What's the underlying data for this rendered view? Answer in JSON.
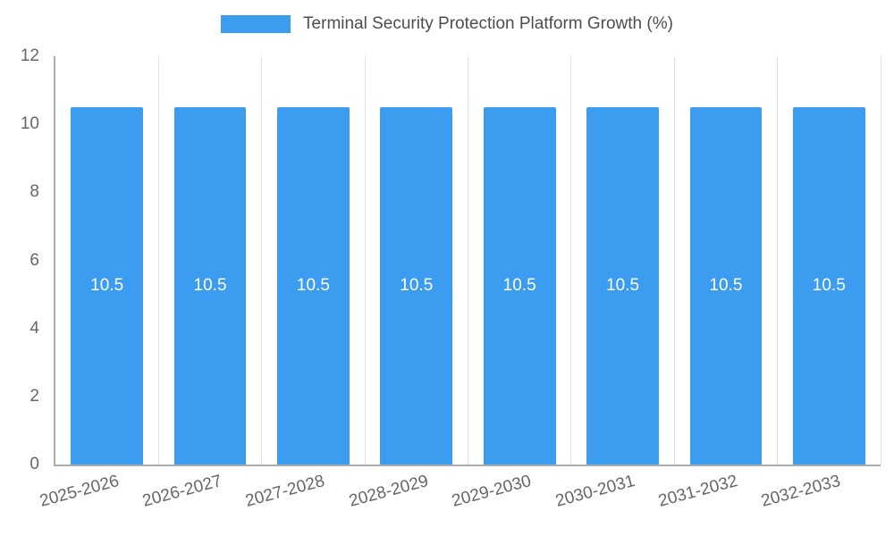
{
  "chart_data": {
    "type": "bar",
    "title": "Terminal Security Protection Platform Growth (%)",
    "categories": [
      "2025-2026",
      "2026-2027",
      "2027-2028",
      "2028-2029",
      "2029-2030",
      "2030-2031",
      "2031-2032",
      "2032-2033"
    ],
    "values": [
      10.5,
      10.5,
      10.5,
      10.5,
      10.5,
      10.5,
      10.5,
      10.5
    ],
    "value_labels": [
      "10.5",
      "10.5",
      "10.5",
      "10.5",
      "10.5",
      "10.5",
      "10.5",
      "10.5"
    ],
    "xlabel": "",
    "ylabel": "",
    "ylim": [
      0,
      12
    ],
    "yticks": [
      0,
      2,
      4,
      6,
      8,
      10,
      12
    ],
    "grid": "vertical",
    "legend_position": "top",
    "x_label_rotation_deg": -15,
    "bar_color": "#3b9cf0",
    "bar_label_color": "#ffffff",
    "axis_color": "#ababab",
    "grid_color": "#e2e2e2",
    "tick_label_color": "#666666"
  }
}
